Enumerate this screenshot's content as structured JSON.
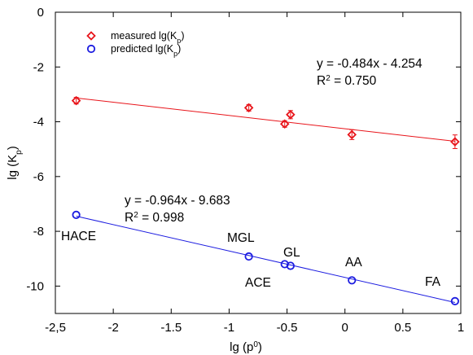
{
  "chart_data": {
    "type": "scatter",
    "xlabel": "lg (p",
    "xlabel_sup": "0",
    "xlabel_end": ")",
    "ylabel": "lg (K",
    "ylabel_sub": "p",
    "ylabel_end": ")",
    "xlim": [
      -2.5,
      1.0
    ],
    "ylim": [
      -11,
      0
    ],
    "xticks": [
      -2.5,
      -2,
      -1.5,
      -1,
      -0.5,
      0,
      0.5,
      1
    ],
    "xtick_labels": [
      "-2,5",
      "-2",
      "-1.5",
      "-1",
      "-0.5",
      "0",
      "0.5",
      "1"
    ],
    "yticks": [
      0,
      -2,
      -4,
      -6,
      -8,
      -10
    ],
    "ytick_labels": [
      "0",
      "-2",
      "-4",
      "-6",
      "-8",
      "-10"
    ],
    "grid": false,
    "legend_position": "top-left",
    "series": [
      {
        "name": "measured lg(Kp)",
        "legend_text": "measured lg(K",
        "legend_sub": "p",
        "legend_end": ")",
        "color": "#e8141a",
        "marker": "diamond",
        "x": [
          -2.32,
          -0.83,
          -0.52,
          -0.47,
          0.06,
          0.95
        ],
        "y": [
          -3.23,
          -3.49,
          -4.08,
          -3.74,
          -4.47,
          -4.73
        ],
        "err": [
          0.12,
          0.12,
          0.12,
          0.15,
          0.18,
          0.25
        ],
        "fit": {
          "slope": -0.484,
          "intercept": -4.254,
          "equation": "y = -0.484x - 4.254",
          "r2_text": "R",
          "r2_sup": "2",
          "r2_value": " = 0.750"
        }
      },
      {
        "name": "predicted lg(Kp)",
        "legend_text": "predicted lg(K",
        "legend_sub": "p",
        "legend_end": ")",
        "color": "#1c1ce0",
        "marker": "circle",
        "x": [
          -2.32,
          -0.83,
          -0.52,
          -0.47,
          0.06,
          0.95
        ],
        "y": [
          -7.4,
          -8.92,
          -9.2,
          -9.26,
          -9.79,
          -10.55
        ],
        "labels": [
          "HACE",
          "MGL",
          "ACE",
          "GL",
          "AA",
          "FA"
        ],
        "fit": {
          "slope": -0.964,
          "intercept": -9.683,
          "equation": "y = -0.964x - 9.683",
          "r2_text": "R",
          "r2_sup": "2",
          "r2_value": " = 0.998"
        }
      }
    ]
  }
}
